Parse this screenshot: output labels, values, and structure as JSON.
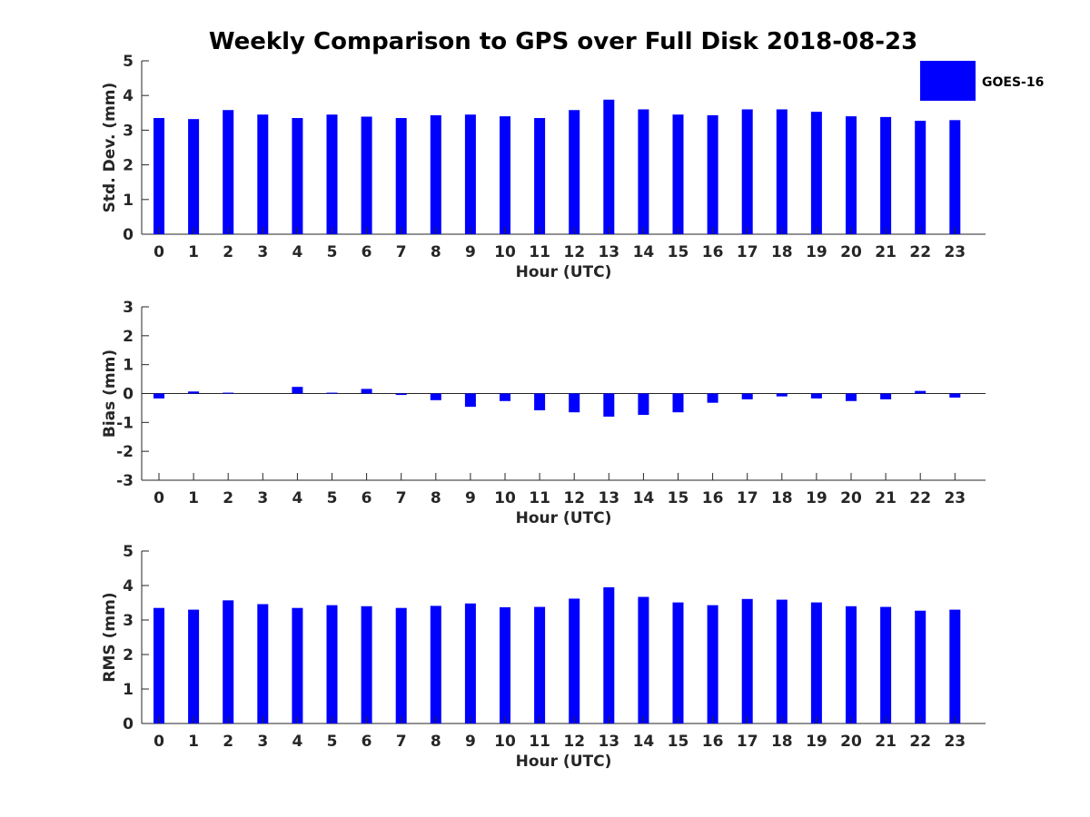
{
  "title": "Weekly Comparison to GPS over Full Disk 2018-08-23",
  "legend": {
    "label": "GOES-16",
    "color": "#0000ff"
  },
  "chart_data": [
    {
      "type": "bar",
      "name": "std-dev",
      "xlabel": "Hour (UTC)",
      "ylabel": "Std. Dev. (mm)",
      "ylim": [
        0,
        5
      ],
      "yticks": [
        0,
        1,
        2,
        3,
        4,
        5
      ],
      "categories": [
        "0",
        "1",
        "2",
        "3",
        "4",
        "5",
        "6",
        "7",
        "8",
        "9",
        "10",
        "11",
        "12",
        "13",
        "14",
        "15",
        "16",
        "17",
        "18",
        "19",
        "20",
        "21",
        "22",
        "23"
      ],
      "series": [
        {
          "name": "GOES-16",
          "values": [
            3.35,
            3.32,
            3.58,
            3.45,
            3.35,
            3.45,
            3.39,
            3.35,
            3.43,
            3.45,
            3.4,
            3.35,
            3.58,
            3.88,
            3.6,
            3.45,
            3.43,
            3.6,
            3.6,
            3.53,
            3.4,
            3.38,
            3.27,
            3.29
          ]
        }
      ]
    },
    {
      "type": "bar",
      "name": "bias",
      "xlabel": "Hour (UTC)",
      "ylabel": "Bias (mm)",
      "ylim": [
        -3,
        3
      ],
      "yticks": [
        -3,
        -2,
        -1,
        0,
        1,
        2,
        3
      ],
      "baseline": 0,
      "categories": [
        "0",
        "1",
        "2",
        "3",
        "4",
        "5",
        "6",
        "7",
        "8",
        "9",
        "10",
        "11",
        "12",
        "13",
        "14",
        "15",
        "16",
        "17",
        "18",
        "19",
        "20",
        "21",
        "22",
        "23"
      ],
      "series": [
        {
          "name": "GOES-16",
          "values": [
            -0.17,
            0.07,
            0.03,
            0.0,
            0.23,
            0.03,
            0.16,
            -0.05,
            -0.23,
            -0.46,
            -0.26,
            -0.58,
            -0.65,
            -0.8,
            -0.74,
            -0.65,
            -0.32,
            -0.2,
            -0.1,
            -0.17,
            -0.26,
            -0.2,
            0.09,
            -0.14
          ]
        }
      ]
    },
    {
      "type": "bar",
      "name": "rms",
      "xlabel": "Hour (UTC)",
      "ylabel": "RMS (mm)",
      "ylim": [
        0,
        5
      ],
      "yticks": [
        0,
        1,
        2,
        3,
        4,
        5
      ],
      "categories": [
        "0",
        "1",
        "2",
        "3",
        "4",
        "5",
        "6",
        "7",
        "8",
        "9",
        "10",
        "11",
        "12",
        "13",
        "14",
        "15",
        "16",
        "17",
        "18",
        "19",
        "20",
        "21",
        "22",
        "23"
      ],
      "series": [
        {
          "name": "GOES-16",
          "values": [
            3.35,
            3.3,
            3.57,
            3.46,
            3.35,
            3.43,
            3.4,
            3.35,
            3.41,
            3.48,
            3.37,
            3.38,
            3.62,
            3.95,
            3.67,
            3.51,
            3.43,
            3.61,
            3.59,
            3.51,
            3.4,
            3.38,
            3.27,
            3.3
          ]
        }
      ]
    }
  ]
}
